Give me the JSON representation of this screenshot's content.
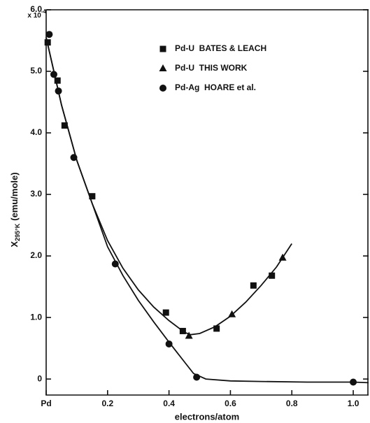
{
  "chart_data": {
    "type": "scatter",
    "xlabel": "electrons/atom",
    "ylabel": "X",
    "ylabel_sub": "295°K",
    "ylabel_unit": "(emu/mole)",
    "multiplier": "x 10",
    "multiplier_exp": "-4",
    "xlim": [
      0,
      1.05
    ],
    "ylim": [
      -0.26,
      6.0
    ],
    "xticks": [
      {
        "value": 0,
        "label": "Pd"
      },
      0.2,
      0.4,
      0.6,
      0.8,
      {
        "value": 1,
        "label": "1.0"
      }
    ],
    "yticks": [
      0,
      {
        "value": 1,
        "label": "1.0"
      },
      {
        "value": 2,
        "label": "2.0"
      },
      {
        "value": 3,
        "label": "3.0"
      },
      {
        "value": 4,
        "label": "4.0"
      },
      {
        "value": 5,
        "label": "5.0"
      },
      {
        "value": 6,
        "label": "6.0"
      }
    ],
    "color": "#111111",
    "series": [
      {
        "name": "Pd-U  BATES & LEACH",
        "marker": "square",
        "x": [
          0.005,
          0.037,
          0.06,
          0.15,
          0.39,
          0.445,
          0.555,
          0.675,
          0.735
        ],
        "values": [
          5.47,
          4.85,
          4.12,
          2.97,
          1.08,
          0.78,
          0.82,
          1.52,
          1.68
        ]
      },
      {
        "name": "Pd-U  THIS WORK",
        "marker": "triangle",
        "x": [
          0.465,
          0.605,
          0.77
        ],
        "values": [
          0.7,
          1.05,
          1.97
        ]
      },
      {
        "name": "Pd-Ag  HOARE et al.",
        "marker": "circle",
        "x": [
          0.01,
          0.025,
          0.04,
          0.09,
          0.225,
          0.4,
          0.49,
          1.0
        ],
        "values": [
          5.6,
          4.95,
          4.68,
          3.6,
          1.87,
          0.57,
          0.03,
          -0.05
        ]
      }
    ],
    "curves": [
      {
        "x": [
          0,
          0.05,
          0.1,
          0.15,
          0.2,
          0.25,
          0.3,
          0.35,
          0.4,
          0.45,
          0.47,
          0.5,
          0.55,
          0.6,
          0.65,
          0.7,
          0.75,
          0.8
        ],
        "values": [
          5.55,
          4.45,
          3.55,
          2.85,
          2.25,
          1.8,
          1.45,
          1.17,
          0.95,
          0.76,
          0.72,
          0.74,
          0.85,
          1.02,
          1.25,
          1.52,
          1.82,
          2.2
        ]
      },
      {
        "x": [
          0,
          0.05,
          0.1,
          0.15,
          0.2,
          0.25,
          0.3,
          0.35,
          0.4,
          0.45,
          0.48,
          0.52,
          0.6,
          0.7,
          0.85,
          1.0,
          1.05
        ],
        "values": [
          5.55,
          4.45,
          3.55,
          2.85,
          2.15,
          1.68,
          1.28,
          0.93,
          0.6,
          0.28,
          0.09,
          0.0,
          -0.03,
          -0.04,
          -0.05,
          -0.05,
          -0.06
        ]
      }
    ]
  }
}
